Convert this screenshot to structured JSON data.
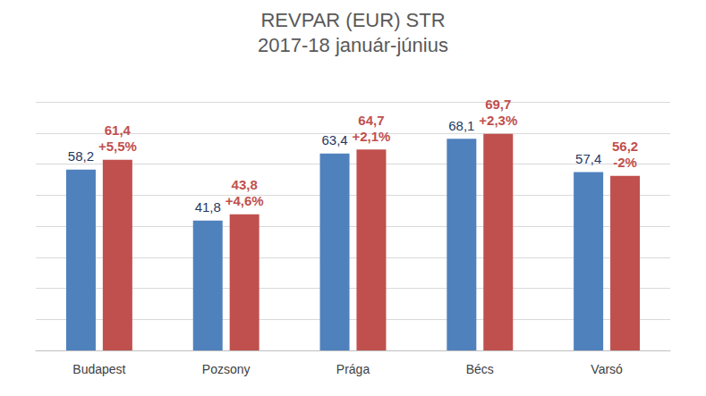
{
  "chart_data": {
    "type": "bar",
    "title": "REVPAR (EUR) STR",
    "subtitle": "2017-18 január-június",
    "categories": [
      "Budapest",
      "Pozsony",
      "Prága",
      "Bécs",
      "Varsó"
    ],
    "series": [
      {
        "color": "#4f81bd",
        "values": [
          58.2,
          41.8,
          63.4,
          68.1,
          57.4
        ],
        "value_labels": [
          "58,2",
          "41,8",
          "63,4",
          "68,1",
          "57,4"
        ]
      },
      {
        "color": "#c0504d",
        "values": [
          61.4,
          43.8,
          64.7,
          69.7,
          56.2
        ],
        "value_labels": [
          "61,4",
          "43,8",
          "64,7",
          "69,7",
          "56,2"
        ],
        "annotations": [
          "+5,5%",
          "+4,6%",
          "+2,1%",
          "+2,3%",
          "-2%"
        ]
      }
    ],
    "ylim": [
      0,
      80
    ],
    "yticks": [
      0,
      10,
      20,
      30,
      40,
      50,
      60,
      70,
      80
    ],
    "grid": true,
    "data_labels": true,
    "tick_labels": "x"
  }
}
